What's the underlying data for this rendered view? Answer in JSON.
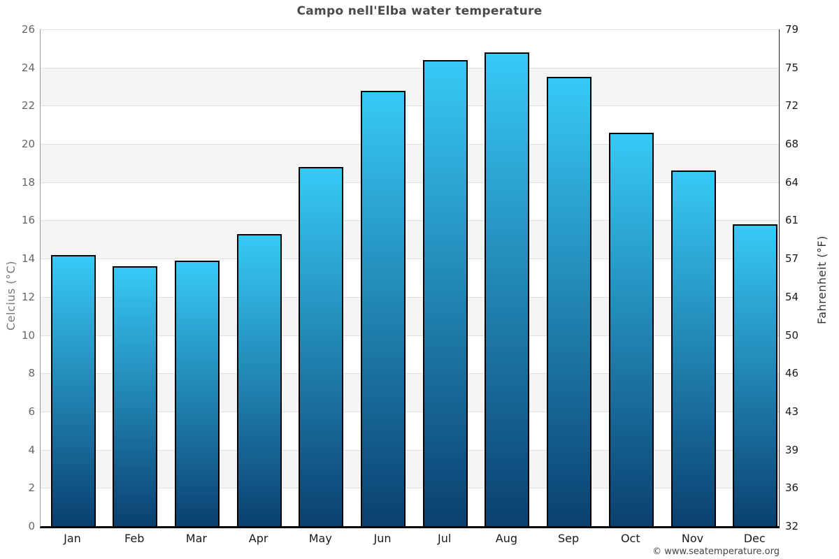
{
  "chart_data": {
    "type": "bar",
    "title": "Campo nell'Elba water temperature",
    "categories": [
      "Jan",
      "Feb",
      "Mar",
      "Apr",
      "May",
      "Jun",
      "Jul",
      "Aug",
      "Sep",
      "Oct",
      "Nov",
      "Dec"
    ],
    "values": [
      14.2,
      13.6,
      13.9,
      15.3,
      18.8,
      22.8,
      24.4,
      24.8,
      23.5,
      20.6,
      18.6,
      15.8
    ],
    "unit": "°C",
    "ylabel_left": "Celcius (°C)",
    "ylabel_right": "Fahrenheit (°F)",
    "xlabel": "",
    "ylim": [
      0,
      26
    ],
    "yticks_celsius": [
      26,
      24,
      22,
      20,
      18,
      16,
      14,
      12,
      10,
      8,
      6,
      4,
      2,
      0
    ],
    "yticks_fahrenheit": [
      79,
      75,
      72,
      68,
      64,
      61,
      57,
      54,
      50,
      46,
      43,
      39,
      36,
      32
    ],
    "grid": "horizontal-gridlines-with-alternating-bands",
    "legend": "none",
    "footer": "© www.seatemperature.org",
    "colors": {
      "bar_gradient_top": "#38c9f6",
      "bar_gradient_bottom": "#0a4070",
      "bar_border": "#000000",
      "band_alternate": "#f4f4f4",
      "gridline": "#e0e0e0",
      "axis_bottom": "#000000",
      "title_text": "#4a4a4a",
      "celsius_tick_text": "#666666",
      "fahrenheit_tick_text": "#1a1a1a"
    }
  }
}
